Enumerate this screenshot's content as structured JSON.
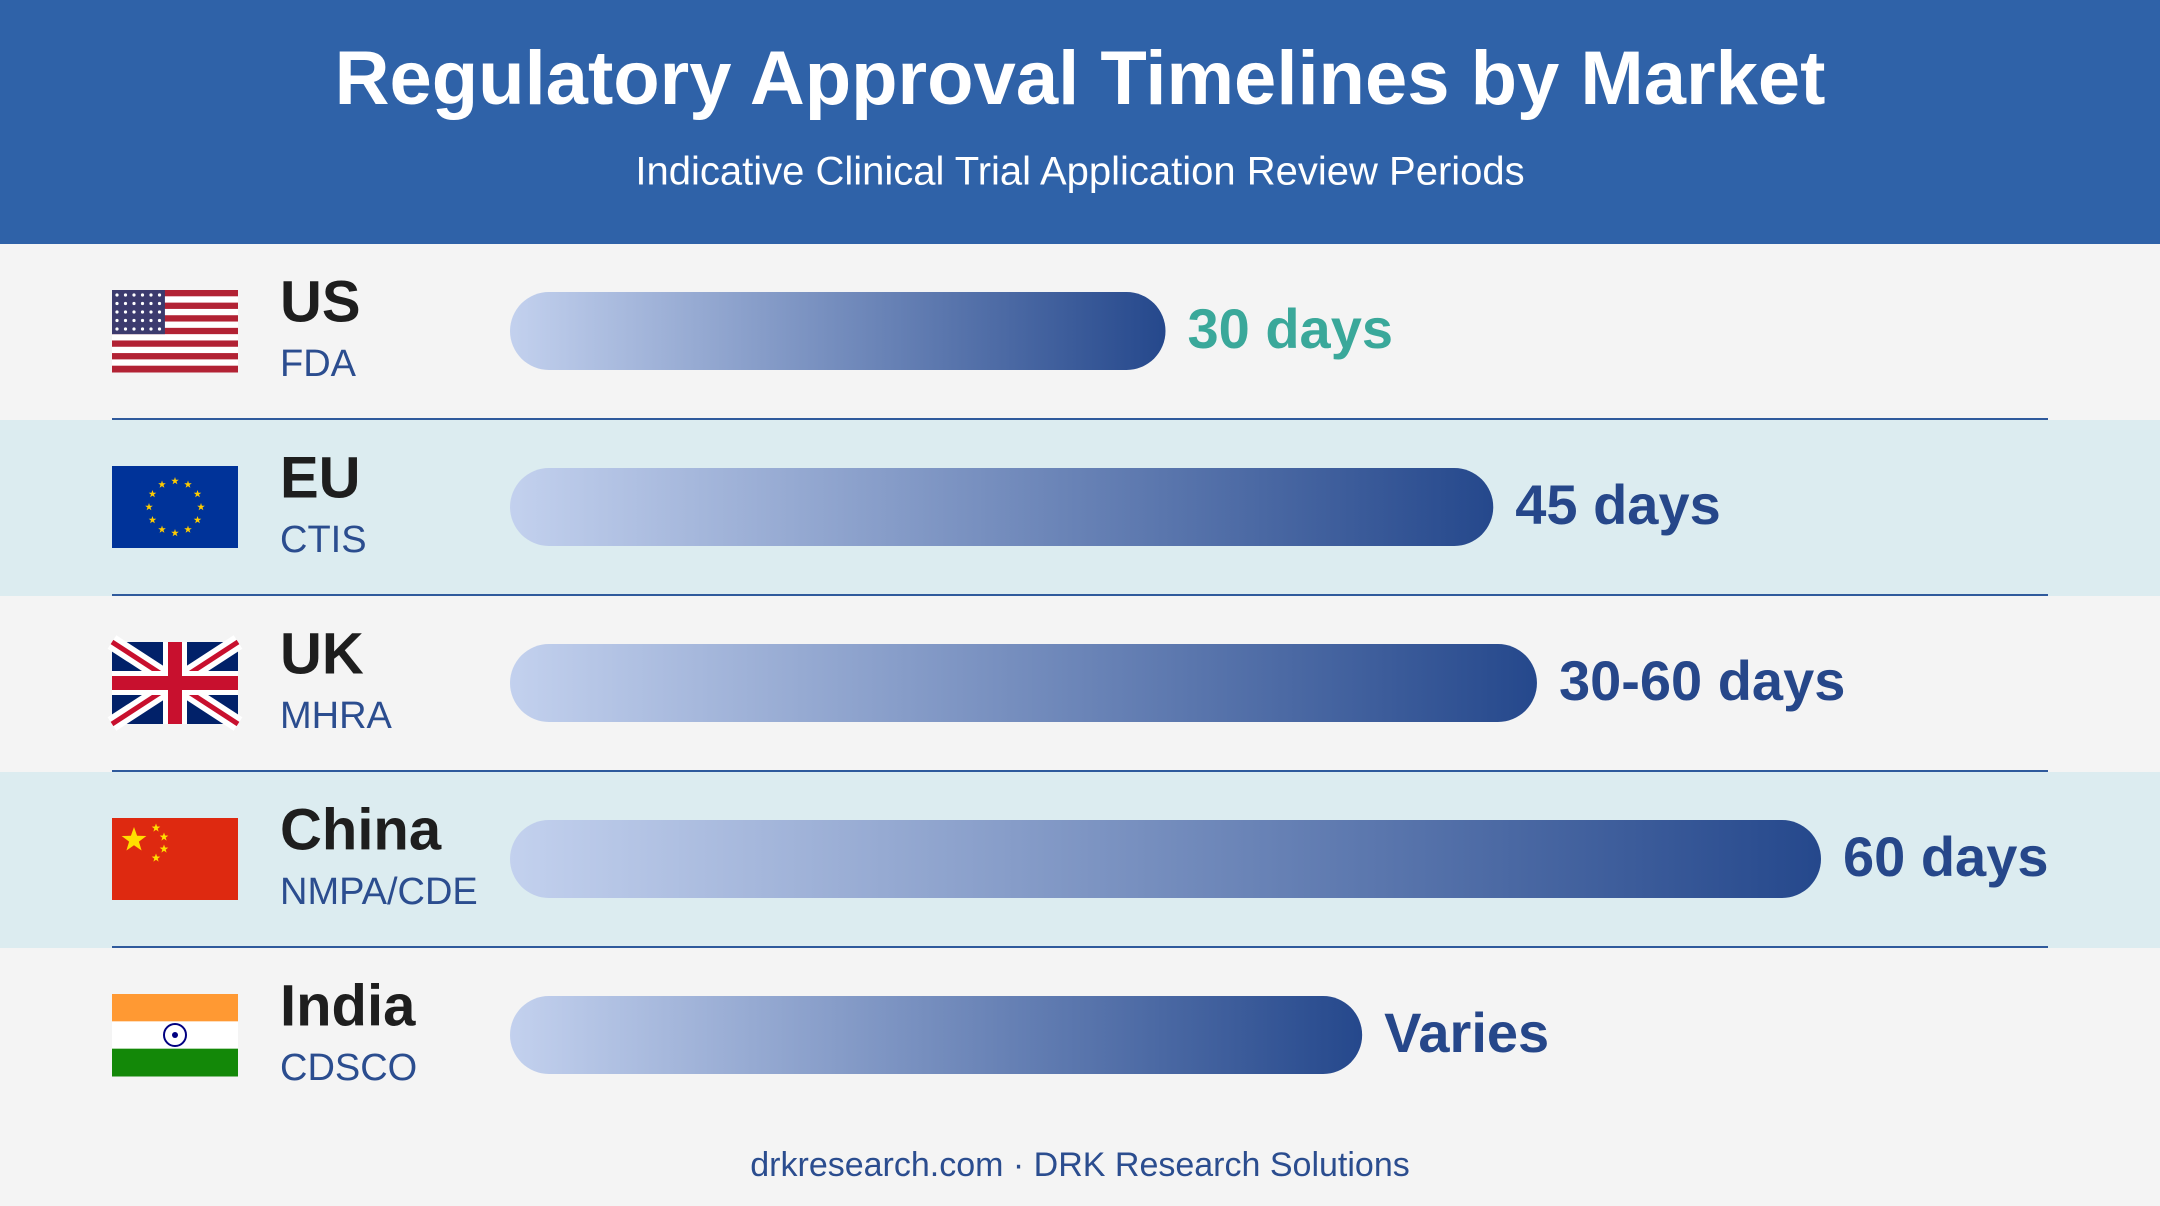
{
  "chart_data": {
    "type": "bar",
    "orientation": "horizontal",
    "title": "Regulatory Approval Timelines by Market",
    "subtitle": "Indicative Clinical Trial Application Review Periods",
    "categories": [
      "US",
      "EU",
      "UK",
      "China",
      "India"
    ],
    "agencies": [
      "FDA",
      "CTIS",
      "MHRA",
      "NMPA/CDE",
      "CDSCO"
    ],
    "values": [
      30,
      45,
      47,
      60,
      39
    ],
    "value_labels": [
      "30 days",
      "45 days",
      "30-60 days",
      "60 days",
      "Varies"
    ],
    "value_label_colors": [
      "#3aa89a",
      "#26478a",
      "#26478a",
      "#26478a",
      "#26478a"
    ],
    "color": [
      "#c3d1ee",
      "#25488c"
    ],
    "footer": "drkresearch.com · DRK Research Solutions"
  }
}
